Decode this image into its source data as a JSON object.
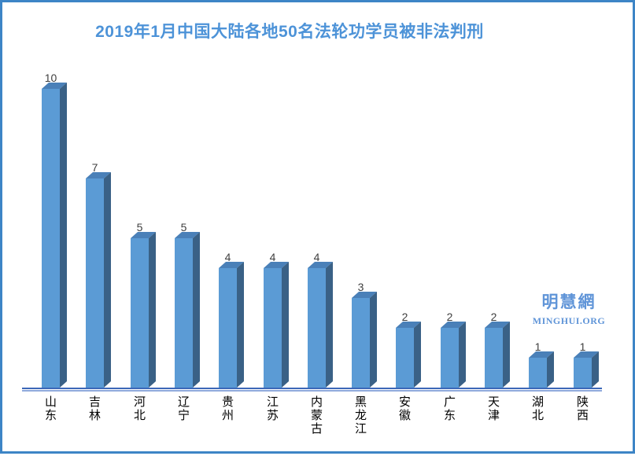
{
  "page": {
    "frame_border_color": "#3d85c6",
    "background_color": "#ffffff"
  },
  "watermark": {
    "cn": "明慧網",
    "en": "MINGHUI.ORG",
    "color": "#6095d8"
  },
  "chart_data": {
    "type": "bar",
    "title": "2019年1月中国大陆各地50名法轮功学员被非法判刑",
    "title_color": "#4d93d8",
    "categories": [
      "山东",
      "吉林",
      "河北",
      "辽宁",
      "贵州",
      "江苏",
      "内蒙古",
      "黑龙江",
      "安徽",
      "广东",
      "天津",
      "湖北",
      "陕西"
    ],
    "values": [
      10,
      7,
      5,
      5,
      4,
      4,
      4,
      3,
      2,
      2,
      2,
      1,
      1
    ],
    "data_labels": [
      10,
      7,
      5,
      5,
      4,
      4,
      4,
      3,
      2,
      2,
      2,
      1,
      1
    ],
    "xlabel": "",
    "ylabel": "",
    "ylim": [
      0,
      10
    ],
    "grid": false,
    "legend": false,
    "style": "3d-bar",
    "bar_front_color": "#5b9bd5",
    "bar_top_color": "#4a80b8",
    "bar_side_color": "#3a6186",
    "data_label_color": "#3f3f3f",
    "category_label_color": "#000000",
    "axis_line_color": "#3c68b8",
    "axis_shadow_color": "#8faadc"
  }
}
